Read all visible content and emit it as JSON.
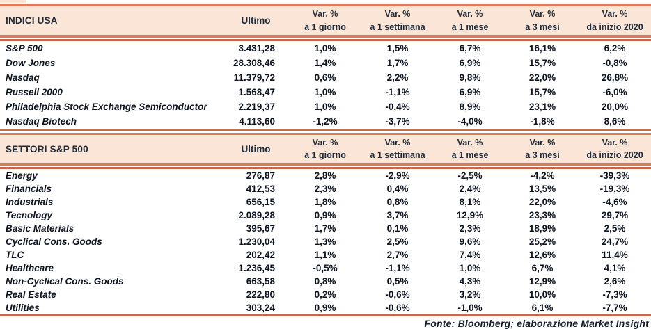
{
  "colors": {
    "band_fill": "#FBE5D6",
    "line_salmon": "#E0795B",
    "line_dark": "#C9664C",
    "header_text": "#1E2B3A",
    "body_text": "#0C1420"
  },
  "chart_data": [
    {
      "type": "table",
      "title": "INDICI USA",
      "header": {
        "ultimo": "Ultimo",
        "vars": [
          {
            "l1": "Var. %",
            "l2": "a 1 giorno"
          },
          {
            "l1": "Var. %",
            "l2": "a 1 settimana"
          },
          {
            "l1": "Var. %",
            "l2": "a 1 mese"
          },
          {
            "l1": "Var. %",
            "l2": "a 3 mesi"
          },
          {
            "l1": "Var. %",
            "l2": "da inizio 2020"
          }
        ]
      },
      "rows": [
        {
          "name": "S&P 500",
          "ultimo": "3.431,28",
          "vars": [
            "1,0%",
            "1,5%",
            "6,7%",
            "16,1%",
            "6,2%"
          ]
        },
        {
          "name": "Dow Jones",
          "ultimo": "28.308,46",
          "vars": [
            "1,4%",
            "1,7%",
            "6,9%",
            "15,7%",
            "-0,8%"
          ]
        },
        {
          "name": "Nasdaq",
          "ultimo": "11.379,72",
          "vars": [
            "0,6%",
            "2,2%",
            "9,8%",
            "22,0%",
            "26,8%"
          ]
        },
        {
          "name": "Russell 2000",
          "ultimo": "1.568,47",
          "vars": [
            "1,0%",
            "-1,1%",
            "6,9%",
            "15,7%",
            "-6,0%"
          ]
        },
        {
          "name": "Philadelphia Stock Exchange Semiconductor",
          "ultimo": "2.219,37",
          "vars": [
            "1,0%",
            "-0,4%",
            "8,9%",
            "23,1%",
            "20,0%"
          ]
        },
        {
          "name": "Nasdaq Biotech",
          "ultimo": "4.113,60",
          "vars": [
            "-1,2%",
            "-3,7%",
            "-4,0%",
            "-1,8%",
            "8,6%"
          ]
        }
      ]
    },
    {
      "type": "table",
      "title": "SETTORI S&P 500",
      "header": {
        "ultimo": "Ultimo",
        "vars": [
          {
            "l1": "Var. %",
            "l2": "a 1 giorno"
          },
          {
            "l1": "Var. %",
            "l2": "a 1 settimana"
          },
          {
            "l1": "Var. %",
            "l2": "a 1 mese"
          },
          {
            "l1": "Var. %",
            "l2": "a 3 mesi"
          },
          {
            "l1": "Var. %",
            "l2": "da inizio 2020"
          }
        ]
      },
      "rows": [
        {
          "name": "Energy",
          "ultimo": "276,87",
          "vars": [
            "2,8%",
            "-2,9%",
            "-2,5%",
            "-4,2%",
            "-39,3%"
          ]
        },
        {
          "name": "Financials",
          "ultimo": "412,53",
          "vars": [
            "2,3%",
            "0,4%",
            "2,4%",
            "13,5%",
            "-19,3%"
          ]
        },
        {
          "name": "Industrials",
          "ultimo": "656,15",
          "vars": [
            "1,8%",
            "0,8%",
            "8,1%",
            "22,0%",
            "-4,6%"
          ]
        },
        {
          "name": "Tecnology",
          "ultimo": "2.089,28",
          "vars": [
            "0,9%",
            "3,7%",
            "12,9%",
            "23,3%",
            "29,7%"
          ]
        },
        {
          "name": "Basic Materials",
          "ultimo": "395,67",
          "vars": [
            "1,7%",
            "0,1%",
            "2,3%",
            "18,9%",
            "2,5%"
          ]
        },
        {
          "name": "Cyclical Cons. Goods",
          "ultimo": "1.230,04",
          "vars": [
            "1,3%",
            "2,5%",
            "9,6%",
            "25,2%",
            "24,7%"
          ]
        },
        {
          "name": "TLC",
          "ultimo": "202,42",
          "vars": [
            "1,1%",
            "2,7%",
            "7,4%",
            "12,6%",
            "11,4%"
          ]
        },
        {
          "name": "Healthcare",
          "ultimo": "1.236,45",
          "vars": [
            "-0,5%",
            "-1,1%",
            "1,0%",
            "6,7%",
            "4,1%"
          ]
        },
        {
          "name": "Non-Cyclical Cons. Goods",
          "ultimo": "663,58",
          "vars": [
            "0,8%",
            "0,5%",
            "4,3%",
            "12,9%",
            "2,6%"
          ]
        },
        {
          "name": "Real Estate",
          "ultimo": "222,80",
          "vars": [
            "0,2%",
            "-0,6%",
            "3,2%",
            "10,0%",
            "-7,3%"
          ]
        },
        {
          "name": "Utilities",
          "ultimo": "303,24",
          "vars": [
            "0,9%",
            "-0,6%",
            "-1,0%",
            "6,1%",
            "-7,7%"
          ]
        }
      ]
    }
  ],
  "footer": {
    "source": "Fonte: Bloomberg; elaborazione Market Insight"
  }
}
